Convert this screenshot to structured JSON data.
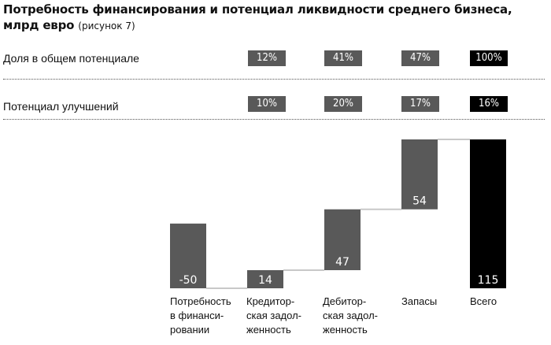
{
  "title": {
    "main": "Потребность финансирования и потенциал ликвидности среднего бизнеса, млрд евро",
    "note": "(рисунок 7)"
  },
  "rows": [
    {
      "label": "Доля в общем потенциале",
      "values": [
        "12%",
        "41%",
        "47%",
        "100%"
      ]
    },
    {
      "label": "Потенциал улучшений",
      "values": [
        "10%",
        "20%",
        "17%",
        "16%"
      ]
    }
  ],
  "colors": {
    "bar": "#595959",
    "total": "#000000",
    "badge": "#595959",
    "connector": "#c8c8c8"
  },
  "chart_data": {
    "type": "bar",
    "subtype": "waterfall",
    "categories": [
      "Потребность\nв финанси-\nровании",
      "Кредитор-\nская задол-\nженность",
      "Дебитор-\nская задол-\nженность",
      "Запасы",
      "Всего"
    ],
    "values": [
      -50,
      14,
      47,
      54,
      115
    ],
    "labels": [
      "-50",
      "14",
      "47",
      "54",
      "115"
    ]
  }
}
